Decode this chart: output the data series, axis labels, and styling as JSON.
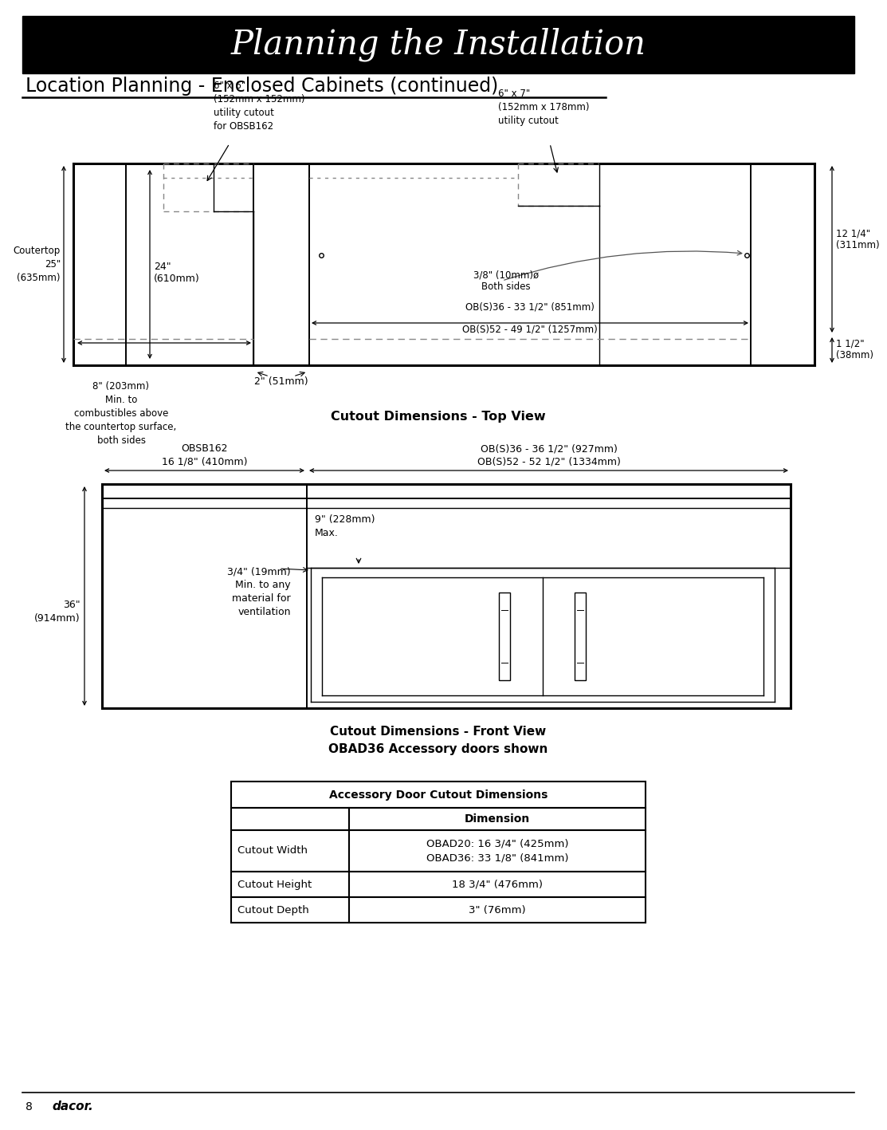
{
  "title": "Planning the Installation",
  "subtitle": "Location Planning - Enclosed Cabinets (continued)",
  "cutout_top_caption": "Cutout Dimensions - Top View",
  "cutout_front_caption": "Cutout Dimensions - Front View\nOBAD36 Accessory doors shown",
  "table_header": "Accessory Door Cutout Dimensions",
  "table_col2_header": "Dimension",
  "table_rows": [
    [
      "Cutout Width",
      "OBAD20: 16 3/4\" (425mm)\nOBAD36: 33 1/8\" (841mm)"
    ],
    [
      "Cutout Height",
      "18 3/4\" (476mm)"
    ],
    [
      "Cutout Depth",
      "3\" (76mm)"
    ]
  ],
  "annotations_top": {
    "label_6x6": "6\" x 6\"\n(152mm x 152mm)\nutility cutout\nfor OBSB162",
    "label_6x7": "6\" x 7\"\n(152mm x 178mm)\nutility cutout",
    "label_countertop": "Coutertop\n25\"\n(635mm)",
    "label_24": "24\"\n(610mm)",
    "label_12": "12 1/4\"\n(311mm)",
    "label_8": "8\" (203mm)\nMin. to\ncombustibles above\nthe countertop surface,\nboth sides",
    "label_2": "2\" (51mm)",
    "label_1_5": "1 1/2\"\n(38mm)",
    "label_3_8": "3/8\" (10mm)ø\nBoth sides",
    "label_obs36": "OB(S)36 - 33 1/2\" (851mm)",
    "label_obs52": "OB(S)52 - 49 1/2\" (1257mm)"
  },
  "annotations_front": {
    "label_obsb162": "OBSB162\n16 1/8\" (410mm)",
    "label_obs36_front": "OB(S)36 - 36 1/2\" (927mm)\nOB(S)52 - 52 1/2\" (1334mm)",
    "label_9": "9\" (228mm)\nMax.",
    "label_34": "3/4\" (19mm)\nMin. to any\nmaterial for\nventilation",
    "label_36": "36\"\n(914mm)"
  }
}
